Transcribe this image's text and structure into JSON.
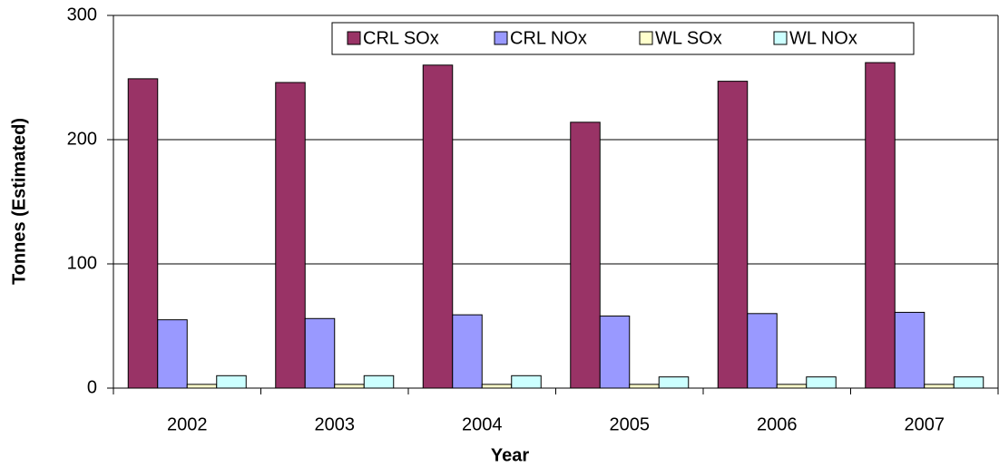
{
  "chart_data": {
    "type": "bar",
    "categories": [
      "2002",
      "2003",
      "2004",
      "2005",
      "2006",
      "2007"
    ],
    "series": [
      {
        "name": "CRL SOx",
        "color": "#993366",
        "values": [
          249,
          246,
          260,
          214,
          247,
          262
        ]
      },
      {
        "name": "CRL NOx",
        "color": "#9999ff",
        "values": [
          55,
          56,
          59,
          58,
          60,
          61
        ]
      },
      {
        "name": "WL SOx",
        "color": "#ffffcc",
        "values": [
          3,
          3,
          3,
          3,
          3,
          3
        ]
      },
      {
        "name": "WL NOx",
        "color": "#ccffff",
        "values": [
          10,
          10,
          10,
          9,
          9,
          9
        ]
      }
    ],
    "x_label": "Year",
    "y_label": "Tonnes (Estimated)",
    "ylim": [
      0,
      300
    ],
    "yticks": [
      0,
      100,
      200,
      300
    ],
    "grid": true,
    "legend": "top"
  }
}
